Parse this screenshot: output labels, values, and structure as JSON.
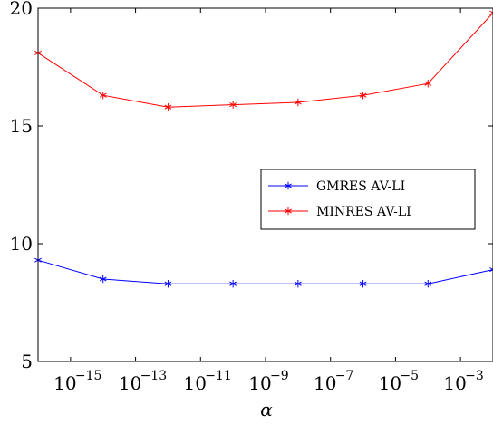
{
  "chart_data": {
    "type": "line",
    "xlabel": "α",
    "ylabel": "",
    "x_scale": "log",
    "x": [
      1e-16,
      1e-14,
      1e-12,
      1e-10,
      1e-08,
      1e-06,
      0.0001,
      0.01
    ],
    "xlim": [
      1e-16,
      0.01
    ],
    "ylim": [
      5,
      20
    ],
    "x_ticks": [
      {
        "exp": 15,
        "value": 1e-15,
        "base": "10",
        "sup": "−15"
      },
      {
        "exp": 13,
        "value": 1e-13,
        "base": "10",
        "sup": "−13"
      },
      {
        "exp": 11,
        "value": 1e-11,
        "base": "10",
        "sup": "−11"
      },
      {
        "exp": 9,
        "value": 1e-09,
        "base": "10",
        "sup": "−9"
      },
      {
        "exp": 7,
        "value": 1e-07,
        "base": "10",
        "sup": "−7"
      },
      {
        "exp": 5,
        "value": 1e-05,
        "base": "10",
        "sup": "−5"
      },
      {
        "exp": 3,
        "value": 0.001,
        "base": "10",
        "sup": "−3"
      }
    ],
    "y_ticks": [
      {
        "value": 5,
        "label": "5"
      },
      {
        "value": 10,
        "label": "10"
      },
      {
        "value": 15,
        "label": "15"
      },
      {
        "value": 20,
        "label": "20"
      }
    ],
    "grid": false,
    "legend_position": "right",
    "series": [
      {
        "name": "GMRES AV-LI",
        "color": "#0000ff",
        "marker": "asterisk",
        "values": [
          9.3,
          8.5,
          8.3,
          8.3,
          8.3,
          8.3,
          8.3,
          8.9
        ]
      },
      {
        "name": "MINRES AV-LI",
        "color": "#ff0000",
        "marker": "asterisk",
        "values": [
          18.1,
          16.3,
          15.8,
          15.9,
          16.0,
          16.3,
          16.8,
          19.8
        ]
      }
    ]
  }
}
